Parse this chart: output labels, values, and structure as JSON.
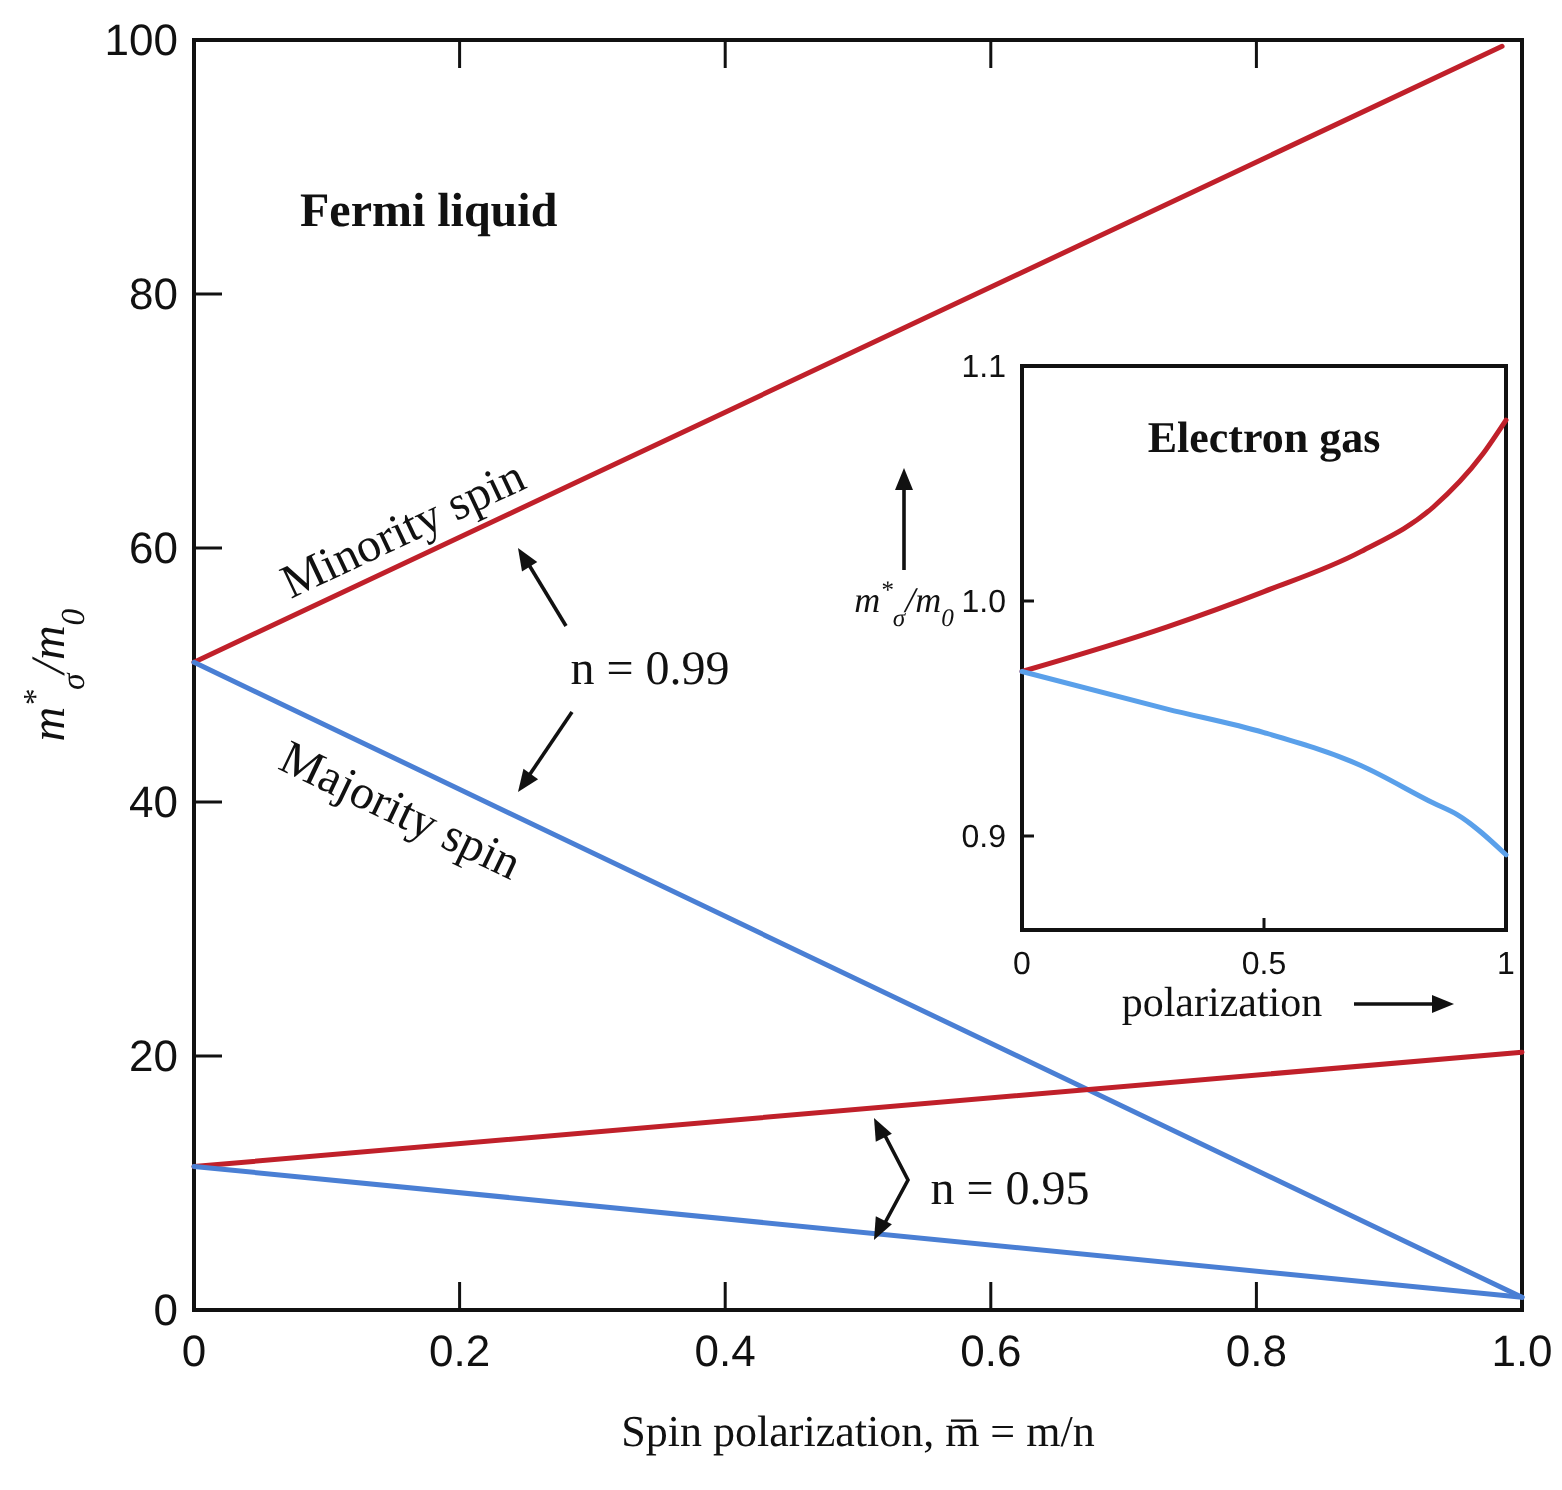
{
  "chart_data": [
    {
      "type": "line",
      "title": "Fermi liquid",
      "xlabel": "Spin polarization, m̅ = m/n",
      "ylabel": "m$^{*}$$_{σ}$/m$_{0}$",
      "xlim": [
        0,
        1
      ],
      "ylim": [
        0,
        100
      ],
      "xticks": [
        0,
        0.2,
        0.4,
        0.6,
        0.8,
        {
          "value": 1,
          "label": "1.0"
        }
      ],
      "yticks": [
        0,
        20,
        40,
        60,
        80,
        100
      ],
      "grid": false,
      "annotations": [
        "n = 0.99",
        "n = 0.95"
      ],
      "series": [
        {
          "name": "Minority spin",
          "color": "#c0202a",
          "x": [
            0,
            0.985
          ],
          "values": [
            51,
            99.5
          ]
        },
        {
          "name": "Majority spin",
          "color": "#4a7fd4",
          "x": [
            0,
            1
          ],
          "values": [
            51,
            1
          ]
        },
        {
          "color": "#c0202a",
          "x": [
            0,
            1
          ],
          "values": [
            11.3,
            20.3
          ]
        },
        {
          "color": "#4a7fd4",
          "x": [
            0,
            1
          ],
          "values": [
            11.3,
            1
          ]
        }
      ]
    },
    {
      "type": "line",
      "title": "Electron gas",
      "xlabel": "polarization",
      "ylabel": "m$^{*}$$_{σ}$/m$_{0}$",
      "xlim": [
        0,
        1
      ],
      "ylim": [
        0.86,
        1.1
      ],
      "xticks": [
        0,
        0.5,
        1
      ],
      "yticks": [
        {
          "value": 0.9,
          "label": "0.9"
        },
        {
          "value": 1,
          "label": "1.0"
        },
        1.1
      ],
      "grid": false,
      "series": [
        {
          "color": "#c0202a",
          "x": [
            0,
            0.3,
            0.5,
            0.7,
            0.85,
            0.95,
            1
          ],
          "values": [
            0.97,
            0.989,
            1.004,
            1.021,
            1.04,
            1.062,
            1.077
          ]
        },
        {
          "color": "#5aa0ea",
          "x": [
            0,
            0.3,
            0.5,
            0.7,
            0.85,
            0.9,
            1
          ],
          "values": [
            0.97,
            0.954,
            0.944,
            0.93,
            0.914,
            0.909,
            0.892
          ]
        }
      ]
    }
  ]
}
